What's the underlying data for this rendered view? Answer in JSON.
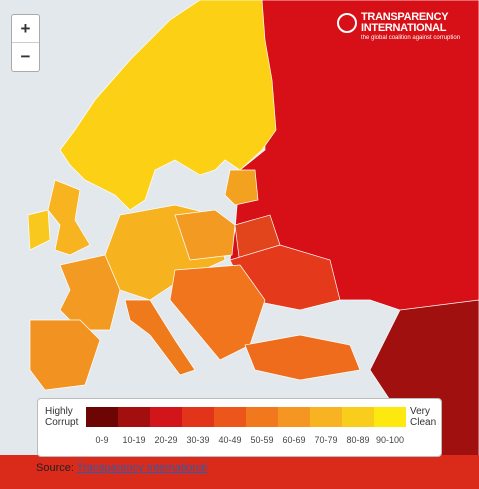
{
  "zoom_controls": {
    "zoom_in": "+",
    "zoom_out": "−"
  },
  "logo": {
    "name": "TRANSPARENCY INTERNATIONAL",
    "tagline": "the global coalition against corruption"
  },
  "legend": {
    "low_label": "Highly Corrupt",
    "high_label": "Very Clean",
    "bins": [
      {
        "label": "0-9",
        "color": "#6e0505"
      },
      {
        "label": "10-19",
        "color": "#a30f0f"
      },
      {
        "label": "20-29",
        "color": "#d1151a"
      },
      {
        "label": "30-39",
        "color": "#e2341a"
      },
      {
        "label": "40-49",
        "color": "#ec561b"
      },
      {
        "label": "50-59",
        "color": "#f2781e"
      },
      {
        "label": "60-69",
        "color": "#f59622"
      },
      {
        "label": "70-79",
        "color": "#f7b322"
      },
      {
        "label": "80-89",
        "color": "#f9cd1c"
      },
      {
        "label": "90-100",
        "color": "#fde910"
      }
    ]
  },
  "source": {
    "prefix": "Source:",
    "link": "Transparency International"
  }
}
